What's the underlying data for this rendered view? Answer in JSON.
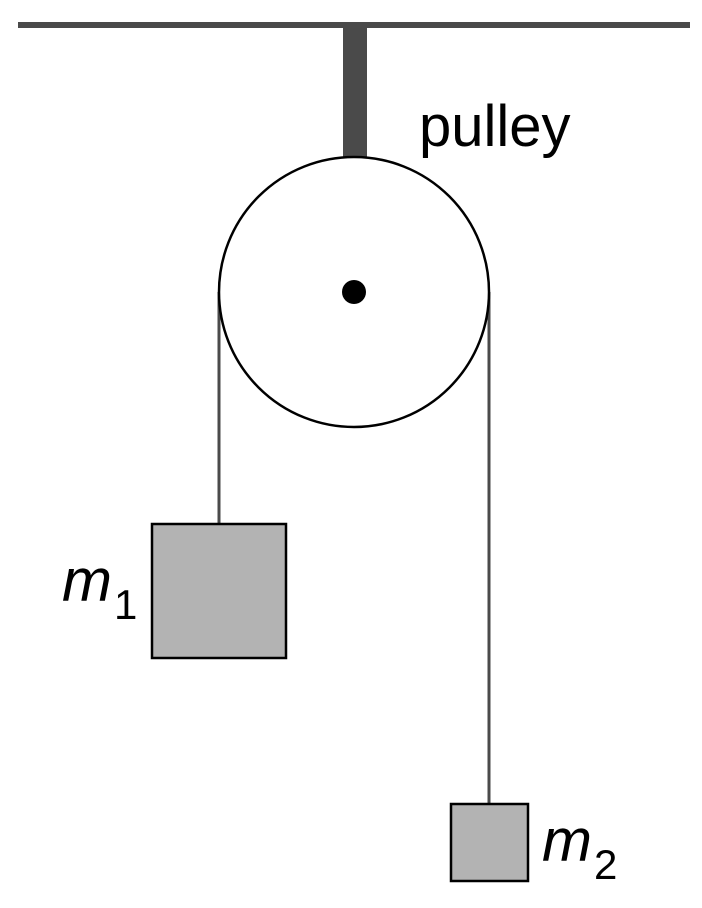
{
  "labels": {
    "pulley": "pulley",
    "mass1_symbol": "m",
    "mass1_subscript": "1",
    "mass2_symbol": "m",
    "mass2_subscript": "2"
  },
  "colors": {
    "line": "#4a4a4a",
    "support": "#4a4a4a",
    "mass_fill": "#b3b3b3",
    "outline": "#000000"
  }
}
